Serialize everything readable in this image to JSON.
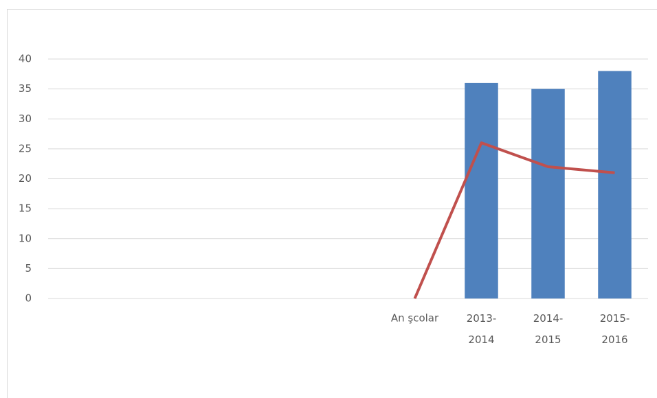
{
  "chart_data": {
    "type": "bar_line",
    "categories": [
      null,
      null,
      null,
      null,
      null,
      "An şcolar",
      "2013-2014",
      "2014-2015",
      "2015-2016"
    ],
    "series": [
      {
        "type": "bar",
        "color": "#4f81bd",
        "values": [
          null,
          null,
          null,
          null,
          null,
          null,
          36,
          35,
          38
        ]
      },
      {
        "type": "line",
        "color": "#c0504d",
        "values": [
          null,
          null,
          null,
          null,
          null,
          0,
          26,
          22,
          21
        ]
      }
    ],
    "ylim": [
      0,
      40
    ],
    "yticks": [
      0,
      5,
      10,
      15,
      20,
      25,
      30,
      35,
      40
    ],
    "grid": true
  }
}
